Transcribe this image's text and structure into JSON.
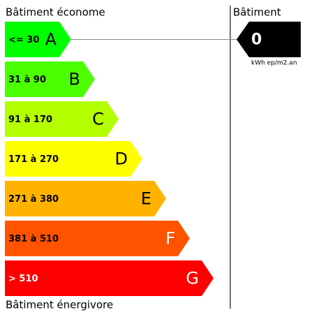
{
  "header": {
    "left_title": "Bâtiment économe",
    "right_title": "Bâtiment",
    "bottom_title": "Bâtiment énergivore"
  },
  "bands": [
    {
      "range": "<= 30",
      "letter": "A",
      "color": "#00ff00",
      "text_color": "#000000"
    },
    {
      "range": "31 à 90",
      "letter": "B",
      "color": "#4cff00",
      "text_color": "#000000"
    },
    {
      "range": "91 à 170",
      "letter": "C",
      "color": "#b3ff00",
      "text_color": "#000000"
    },
    {
      "range": "171 à 270",
      "letter": "D",
      "color": "#ffff00",
      "text_color": "#000000"
    },
    {
      "range": "271 à 380",
      "letter": "E",
      "color": "#ffb300",
      "text_color": "#000000"
    },
    {
      "range": "381 à 510",
      "letter": "F",
      "color": "#ff5300",
      "text_color": "#000000"
    },
    {
      "range": "> 510",
      "letter": "G",
      "color": "#ff0000",
      "text_color": "#ffffff"
    }
  ],
  "building": {
    "value": 0,
    "unit": "kWh ep/m2.an",
    "band_index": 0
  }
}
